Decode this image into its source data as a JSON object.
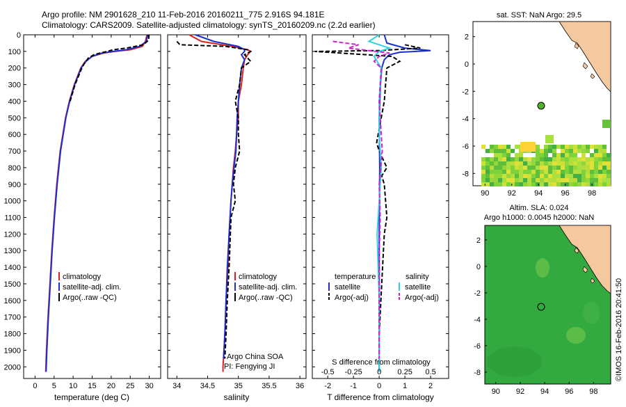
{
  "header": {
    "title_line1": "Argo profile: NM 2901628_210 11-Feb-2016 20160211_775 2.916S 94.181E",
    "title_line2": "Climatology: CARS2009. Satellite-adjusted climatology: synTS_20160209.nc (2.2d earlier)"
  },
  "colors": {
    "clim": "#e02020",
    "sat": "#1a2fd0",
    "argo": "#000000",
    "sat_s": "#30d0e0",
    "argo_s": "#d020d0",
    "land": "#f5c8a0",
    "sea_green": "#44b044"
  },
  "depth_axis": {
    "ticks": [
      "0",
      "100",
      "200",
      "300",
      "400",
      "500",
      "600",
      "700",
      "800",
      "900",
      "1000",
      "1100",
      "1200",
      "1300",
      "1400",
      "1500",
      "1600",
      "1700",
      "1800",
      "1900",
      "2000"
    ]
  },
  "chart_data": [
    {
      "type": "line",
      "id": "temperature",
      "xlabel": "temperature (deg C)",
      "ylabel": "depth",
      "xlim": [
        -3,
        33
      ],
      "ylim": [
        2070,
        0
      ],
      "xticks": [
        "0",
        "5",
        "10",
        "15",
        "20",
        "25",
        "30"
      ],
      "legend": [
        "climatology",
        "satellite-adj. clim.",
        "Argo(..raw -QC)"
      ],
      "series": [
        {
          "name": "climatology",
          "y": [
            0,
            40,
            70,
            90,
            100,
            110,
            130,
            160,
            200,
            300,
            400,
            500,
            700,
            900,
            1100,
            1300,
            1500,
            1700,
            1900,
            2030
          ],
          "x": [
            29.4,
            29.0,
            28.2,
            25.0,
            21.0,
            18.0,
            15.0,
            13.2,
            12.0,
            10.3,
            9.0,
            8.0,
            6.6,
            5.7,
            5.0,
            4.4,
            3.9,
            3.4,
            3.0,
            2.8
          ]
        },
        {
          "name": "satellite",
          "y": [
            0,
            40,
            70,
            90,
            100,
            110,
            130,
            160,
            200,
            300,
            400,
            500,
            700,
            900,
            1100,
            1300,
            1500,
            1700,
            1900,
            2030
          ],
          "x": [
            29.6,
            29.2,
            27.5,
            24.0,
            20.5,
            17.5,
            15.0,
            13.4,
            12.1,
            10.4,
            9.1,
            8.1,
            6.7,
            5.8,
            5.1,
            4.5,
            4.0,
            3.5,
            3.1,
            2.9
          ]
        },
        {
          "name": "argo",
          "y": [
            0,
            30,
            60,
            80,
            90,
            100,
            110,
            120,
            140,
            170,
            200,
            300,
            400
          ],
          "x": [
            29.8,
            29.9,
            28.5,
            24.0,
            20.5,
            19.0,
            17.0,
            15.5,
            14.0,
            13.0,
            12.3,
            10.5,
            9.2
          ]
        }
      ]
    },
    {
      "type": "line",
      "id": "salinity",
      "xlabel": "salinity",
      "xlim": [
        33.85,
        36.1
      ],
      "ylim": [
        2070,
        0
      ],
      "xticks": [
        "34",
        "34.5",
        "35",
        "35.5",
        "36"
      ],
      "legend": [
        "climatology",
        "satellite-adj. clim.",
        "Argo(..raw -QC)"
      ],
      "annotation": [
        "Argo China SOA",
        "PI: Fengying JI"
      ],
      "series": [
        {
          "name": "climatology",
          "y": [
            0,
            40,
            70,
            90,
            100,
            120,
            150,
            200,
            300,
            400,
            500,
            600,
            700,
            800,
            900,
            1000,
            1200,
            1400,
            1600,
            1800,
            2000,
            2030
          ],
          "x": [
            34.2,
            34.4,
            34.9,
            35.15,
            35.2,
            35.15,
            35.1,
            35.08,
            35.05,
            35.0,
            35.0,
            34.97,
            34.95,
            34.92,
            34.9,
            34.88,
            34.85,
            34.83,
            34.8,
            34.78,
            34.75,
            34.75
          ]
        },
        {
          "name": "satellite",
          "y": [
            0,
            40,
            70,
            90,
            100,
            120,
            150,
            200,
            300,
            400,
            500,
            600,
            700,
            800,
            900,
            1000,
            1200,
            1400,
            1600,
            1800,
            1950
          ],
          "x": [
            34.3,
            34.6,
            35.0,
            35.1,
            35.1,
            35.05,
            35.1,
            35.05,
            35.02,
            35.0,
            34.98,
            34.97,
            34.96,
            34.93,
            34.9,
            34.88,
            34.85,
            34.82,
            34.8,
            34.78,
            34.76
          ]
        },
        {
          "name": "argo",
          "y": [
            40,
            60,
            70,
            90,
            100,
            120,
            160,
            200,
            300,
            400,
            500,
            600,
            700,
            800,
            900,
            1000,
            1100,
            1200,
            1400,
            1600,
            1800,
            1950
          ],
          "x": [
            34.0,
            34.05,
            34.8,
            35.15,
            35.2,
            35.1,
            35.2,
            35.05,
            35.02,
            34.95,
            35.0,
            35.0,
            35.02,
            34.95,
            34.92,
            34.95,
            34.88,
            34.87,
            34.85,
            34.82,
            34.8,
            34.78
          ]
        }
      ]
    },
    {
      "type": "line",
      "id": "differences",
      "xlabel": "T difference from climatology",
      "xlim": [
        -2.6,
        2.7
      ],
      "ylim": [
        2070,
        0
      ],
      "xticks": [
        "-2",
        "-1",
        "0",
        "1",
        "2"
      ],
      "top_label": "S difference from climatology",
      "top_ticks": [
        "-0.5",
        "-0.25",
        "0",
        "0.25",
        "0.5"
      ],
      "legend_headers": [
        "temperature",
        "salinity"
      ],
      "legend": [
        "satellite",
        "Argo(-adj)",
        "satellite",
        "Argo(-adj)"
      ],
      "series": [
        {
          "name": "T satellite",
          "y": [
            0,
            50,
            80,
            95,
            105,
            120,
            150,
            200,
            300,
            500,
            800,
            1200,
            1600,
            2030
          ],
          "x": [
            0.2,
            0.3,
            1.0,
            2.0,
            0.8,
            0.4,
            0.2,
            0.1,
            0.05,
            0.0,
            0.02,
            0.0,
            0.0,
            0.0
          ]
        },
        {
          "name": "T argo",
          "y": [
            60,
            80,
            95,
            100,
            110,
            130,
            160,
            200,
            400,
            650,
            700,
            800,
            850,
            900,
            1100,
            1200,
            1500,
            1800
          ],
          "x": [
            1.0,
            1.6,
            0.0,
            -2.5,
            -1.5,
            0.5,
            0.8,
            0.3,
            0.2,
            -0.1,
            0.0,
            0.3,
            0.1,
            0.2,
            0.3,
            0.2,
            0.1,
            0.0
          ]
        },
        {
          "name": "S satellite",
          "y": [
            0,
            40,
            80,
            100,
            130,
            200,
            400,
            600,
            800,
            1000,
            1200,
            1600,
            2030
          ],
          "x": [
            0.0,
            -0.1,
            0.1,
            0.0,
            -0.05,
            0.02,
            0.0,
            0.0,
            0.02,
            0.0,
            -0.02,
            0.0,
            0.0
          ]
        },
        {
          "name": "S argo",
          "y": [
            40,
            60,
            80,
            95,
            110,
            130,
            160,
            200,
            400,
            700,
            900,
            1100,
            1300,
            1600,
            1950
          ],
          "x": [
            -0.45,
            -0.2,
            -0.3,
            -0.1,
            0.1,
            0.0,
            -0.05,
            0.02,
            0.0,
            0.03,
            0.0,
            0.01,
            0.0,
            0.0,
            0.0
          ]
        }
      ]
    }
  ],
  "map_top": {
    "title": "sat. SST: NaN Argo: 29.5",
    "xticks": [
      "90",
      "92",
      "94",
      "96",
      "98"
    ],
    "yticks": [
      "2",
      "0",
      "-2",
      "-4",
      "-6",
      "-8"
    ]
  },
  "map_bottom": {
    "title_line1": "Altim. SLA: 0.024",
    "title_line2": "Argo h1000: 0.0045 h2000: NaN",
    "xticks": [
      "90",
      "92",
      "94",
      "96",
      "98"
    ],
    "yticks": [
      "2",
      "0",
      "-2",
      "-4",
      "-6",
      "-8"
    ]
  },
  "credit": "©IMOS 16-Feb-2016 20:41:50"
}
